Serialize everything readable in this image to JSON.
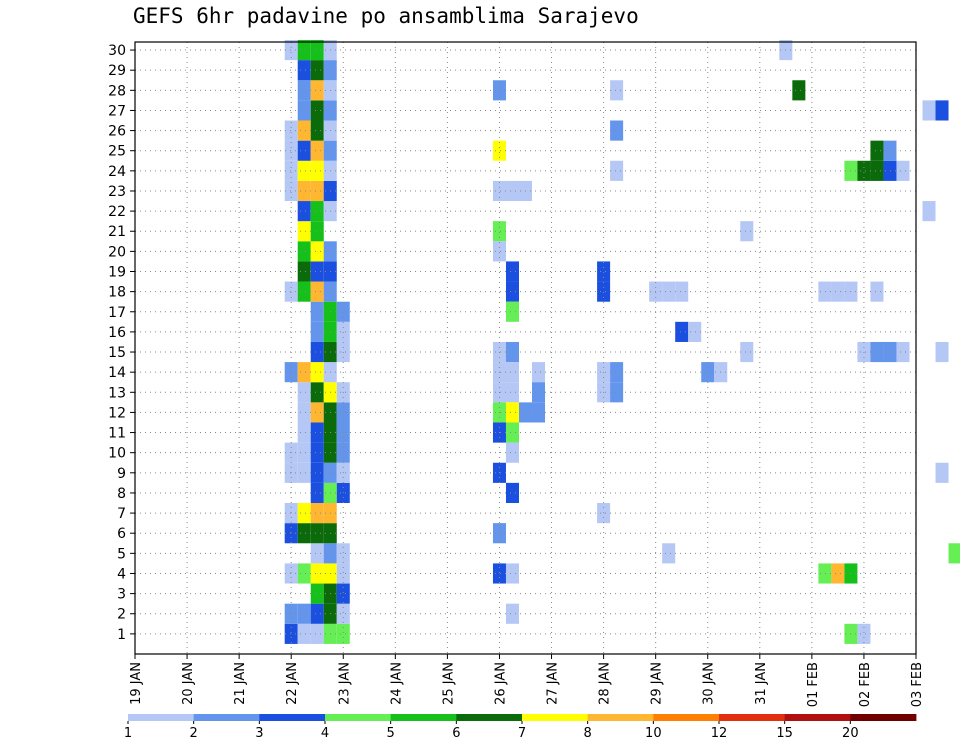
{
  "chart_data": {
    "type": "heatmap",
    "title": "GEFS 6hr padavine po ansamblima Sarajevo",
    "xlabel": "",
    "ylabel": "",
    "x_tick_labels": [
      "19 JAN",
      "20 JAN",
      "21 JAN",
      "22 JAN",
      "23 JAN",
      "24 JAN",
      "25 JAN",
      "26 JAN",
      "27 JAN",
      "28 JAN",
      "29 JAN",
      "30 JAN",
      "31 JAN",
      "01 FEB",
      "02 FEB",
      "03 FEB"
    ],
    "xlim_hours": [
      0,
      360
    ],
    "step_hours": 6,
    "y_categories": [
      "1",
      "2",
      "3",
      "4",
      "5",
      "6",
      "7",
      "8",
      "9",
      "10",
      "11",
      "12",
      "13",
      "14",
      "15",
      "16",
      "17",
      "18",
      "19",
      "20",
      "21",
      "22",
      "23",
      "24",
      "25",
      "26",
      "27",
      "28",
      "29",
      "30"
    ],
    "grid": true,
    "legend": {
      "placement": "bottom",
      "bounds": [
        1,
        2,
        3,
        4,
        5,
        6,
        7,
        8,
        10,
        12,
        15,
        20
      ],
      "colors": [
        "#b5c7f5",
        "#6495ed",
        "#1a4fe0",
        "#66ee55",
        "#16c01a",
        "#0b6b0b",
        "#ffff00",
        "#ffb732",
        "#ff7f00",
        "#e03010",
        "#b01010",
        "#700000"
      ]
    },
    "cells": [
      {
        "m": 1,
        "t": 72,
        "v": 3
      },
      {
        "m": 1,
        "t": 78,
        "v": 1
      },
      {
        "m": 1,
        "t": 84,
        "v": 1
      },
      {
        "m": 1,
        "t": 90,
        "v": 4
      },
      {
        "m": 1,
        "t": 96,
        "v": 4
      },
      {
        "m": 2,
        "t": 72,
        "v": 2
      },
      {
        "m": 2,
        "t": 78,
        "v": 2
      },
      {
        "m": 2,
        "t": 84,
        "v": 3
      },
      {
        "m": 2,
        "t": 90,
        "v": 6
      },
      {
        "m": 2,
        "t": 96,
        "v": 1
      },
      {
        "m": 3,
        "t": 84,
        "v": 5
      },
      {
        "m": 3,
        "t": 90,
        "v": 6
      },
      {
        "m": 3,
        "t": 96,
        "v": 3
      },
      {
        "m": 4,
        "t": 72,
        "v": 1
      },
      {
        "m": 4,
        "t": 78,
        "v": 4
      },
      {
        "m": 4,
        "t": 84,
        "v": 7
      },
      {
        "m": 4,
        "t": 90,
        "v": 7
      },
      {
        "m": 4,
        "t": 96,
        "v": 1
      },
      {
        "m": 5,
        "t": 84,
        "v": 1
      },
      {
        "m": 5,
        "t": 90,
        "v": 2
      },
      {
        "m": 5,
        "t": 96,
        "v": 1
      },
      {
        "m": 6,
        "t": 72,
        "v": 3
      },
      {
        "m": 6,
        "t": 78,
        "v": 6
      },
      {
        "m": 6,
        "t": 84,
        "v": 6
      },
      {
        "m": 6,
        "t": 90,
        "v": 6
      },
      {
        "m": 7,
        "t": 72,
        "v": 1
      },
      {
        "m": 7,
        "t": 78,
        "v": 7
      },
      {
        "m": 7,
        "t": 84,
        "v": 8
      },
      {
        "m": 7,
        "t": 90,
        "v": 8
      },
      {
        "m": 8,
        "t": 84,
        "v": 3
      },
      {
        "m": 8,
        "t": 90,
        "v": 4
      },
      {
        "m": 8,
        "t": 96,
        "v": 3
      },
      {
        "m": 9,
        "t": 72,
        "v": 1
      },
      {
        "m": 9,
        "t": 78,
        "v": 1
      },
      {
        "m": 9,
        "t": 84,
        "v": 3
      },
      {
        "m": 9,
        "t": 90,
        "v": 2
      },
      {
        "m": 9,
        "t": 96,
        "v": 1
      },
      {
        "m": 10,
        "t": 72,
        "v": 1
      },
      {
        "m": 10,
        "t": 78,
        "v": 1
      },
      {
        "m": 10,
        "t": 84,
        "v": 3
      },
      {
        "m": 10,
        "t": 90,
        "v": 6
      },
      {
        "m": 10,
        "t": 96,
        "v": 2
      },
      {
        "m": 11,
        "t": 78,
        "v": 1
      },
      {
        "m": 11,
        "t": 84,
        "v": 3
      },
      {
        "m": 11,
        "t": 90,
        "v": 6
      },
      {
        "m": 11,
        "t": 96,
        "v": 2
      },
      {
        "m": 12,
        "t": 78,
        "v": 1
      },
      {
        "m": 12,
        "t": 84,
        "v": 9
      },
      {
        "m": 12,
        "t": 90,
        "v": 6
      },
      {
        "m": 12,
        "t": 96,
        "v": 2
      },
      {
        "m": 13,
        "t": 78,
        "v": 1
      },
      {
        "m": 13,
        "t": 84,
        "v": 6
      },
      {
        "m": 13,
        "t": 90,
        "v": 7
      },
      {
        "m": 13,
        "t": 96,
        "v": 1
      },
      {
        "m": 14,
        "t": 72,
        "v": 2
      },
      {
        "m": 14,
        "t": 78,
        "v": 9
      },
      {
        "m": 14,
        "t": 84,
        "v": 7
      },
      {
        "m": 14,
        "t": 90,
        "v": 1
      },
      {
        "m": 15,
        "t": 84,
        "v": 3
      },
      {
        "m": 15,
        "t": 90,
        "v": 6
      },
      {
        "m": 15,
        "t": 96,
        "v": 1
      },
      {
        "m": 16,
        "t": 84,
        "v": 2
      },
      {
        "m": 16,
        "t": 90,
        "v": 5
      },
      {
        "m": 16,
        "t": 96,
        "v": 1
      },
      {
        "m": 17,
        "t": 84,
        "v": 2
      },
      {
        "m": 17,
        "t": 90,
        "v": 5
      },
      {
        "m": 17,
        "t": 96,
        "v": 2
      },
      {
        "m": 18,
        "t": 72,
        "v": 1
      },
      {
        "m": 18,
        "t": 78,
        "v": 5
      },
      {
        "m": 18,
        "t": 84,
        "v": 8
      },
      {
        "m": 18,
        "t": 90,
        "v": 2
      },
      {
        "m": 19,
        "t": 78,
        "v": 6
      },
      {
        "m": 19,
        "t": 84,
        "v": 3
      },
      {
        "m": 19,
        "t": 90,
        "v": 3
      },
      {
        "m": 20,
        "t": 78,
        "v": 5
      },
      {
        "m": 20,
        "t": 84,
        "v": 7
      },
      {
        "m": 20,
        "t": 90,
        "v": 2
      },
      {
        "m": 21,
        "t": 78,
        "v": 7
      },
      {
        "m": 21,
        "t": 84,
        "v": 5
      },
      {
        "m": 22,
        "t": 78,
        "v": 3
      },
      {
        "m": 22,
        "t": 84,
        "v": 5
      },
      {
        "m": 22,
        "t": 90,
        "v": 1
      },
      {
        "m": 23,
        "t": 72,
        "v": 1
      },
      {
        "m": 23,
        "t": 78,
        "v": 9
      },
      {
        "m": 23,
        "t": 84,
        "v": 9
      },
      {
        "m": 23,
        "t": 90,
        "v": 3
      },
      {
        "m": 24,
        "t": 72,
        "v": 1
      },
      {
        "m": 24,
        "t": 78,
        "v": 7
      },
      {
        "m": 24,
        "t": 84,
        "v": 7
      },
      {
        "m": 24,
        "t": 90,
        "v": 1
      },
      {
        "m": 25,
        "t": 72,
        "v": 1
      },
      {
        "m": 25,
        "t": 78,
        "v": 3
      },
      {
        "m": 25,
        "t": 84,
        "v": 8
      },
      {
        "m": 25,
        "t": 90,
        "v": 2
      },
      {
        "m": 26,
        "t": 72,
        "v": 1
      },
      {
        "m": 26,
        "t": 78,
        "v": 9
      },
      {
        "m": 26,
        "t": 84,
        "v": 6
      },
      {
        "m": 26,
        "t": 90,
        "v": 1
      },
      {
        "m": 27,
        "t": 78,
        "v": 2
      },
      {
        "m": 27,
        "t": 84,
        "v": 6
      },
      {
        "m": 27,
        "t": 90,
        "v": 2
      },
      {
        "m": 28,
        "t": 78,
        "v": 2
      },
      {
        "m": 28,
        "t": 84,
        "v": 8
      },
      {
        "m": 28,
        "t": 90,
        "v": 1
      },
      {
        "m": 29,
        "t": 78,
        "v": 3
      },
      {
        "m": 29,
        "t": 84,
        "v": 6
      },
      {
        "m": 29,
        "t": 90,
        "v": 2
      },
      {
        "m": 30,
        "t": 72,
        "v": 1
      },
      {
        "m": 30,
        "t": 78,
        "v": 5
      },
      {
        "m": 30,
        "t": 84,
        "v": 5
      },
      {
        "m": 30,
        "t": 90,
        "v": 1
      },
      {
        "m": 28,
        "t": 168,
        "v": 2
      },
      {
        "m": 25,
        "t": 168,
        "v": 7
      },
      {
        "m": 23,
        "t": 168,
        "v": 1
      },
      {
        "m": 23,
        "t": 174,
        "v": 1
      },
      {
        "m": 23,
        "t": 180,
        "v": 1
      },
      {
        "m": 21,
        "t": 168,
        "v": 4
      },
      {
        "m": 20,
        "t": 168,
        "v": 1
      },
      {
        "m": 18,
        "t": 174,
        "v": 3
      },
      {
        "m": 19,
        "t": 174,
        "v": 3
      },
      {
        "m": 17,
        "t": 174,
        "v": 4
      },
      {
        "m": 15,
        "t": 168,
        "v": 1
      },
      {
        "m": 15,
        "t": 174,
        "v": 2
      },
      {
        "m": 14,
        "t": 168,
        "v": 1
      },
      {
        "m": 14,
        "t": 174,
        "v": 1
      },
      {
        "m": 14,
        "t": 186,
        "v": 1
      },
      {
        "m": 13,
        "t": 168,
        "v": 1
      },
      {
        "m": 13,
        "t": 174,
        "v": 1
      },
      {
        "m": 13,
        "t": 186,
        "v": 2
      },
      {
        "m": 12,
        "t": 168,
        "v": 4
      },
      {
        "m": 12,
        "t": 174,
        "v": 7
      },
      {
        "m": 12,
        "t": 180,
        "v": 2
      },
      {
        "m": 12,
        "t": 186,
        "v": 2
      },
      {
        "m": 11,
        "t": 168,
        "v": 3
      },
      {
        "m": 11,
        "t": 174,
        "v": 4
      },
      {
        "m": 10,
        "t": 174,
        "v": 1
      },
      {
        "m": 9,
        "t": 168,
        "v": 3
      },
      {
        "m": 8,
        "t": 174,
        "v": 3
      },
      {
        "m": 6,
        "t": 168,
        "v": 2
      },
      {
        "m": 4,
        "t": 168,
        "v": 3
      },
      {
        "m": 4,
        "t": 174,
        "v": 1
      },
      {
        "m": 2,
        "t": 174,
        "v": 1
      },
      {
        "m": 28,
        "t": 222,
        "v": 1
      },
      {
        "m": 26,
        "t": 222,
        "v": 2
      },
      {
        "m": 24,
        "t": 222,
        "v": 1
      },
      {
        "m": 19,
        "t": 216,
        "v": 3
      },
      {
        "m": 18,
        "t": 216,
        "v": 3
      },
      {
        "m": 14,
        "t": 216,
        "v": 1
      },
      {
        "m": 14,
        "t": 222,
        "v": 2
      },
      {
        "m": 13,
        "t": 216,
        "v": 1
      },
      {
        "m": 13,
        "t": 222,
        "v": 2
      },
      {
        "m": 7,
        "t": 216,
        "v": 1
      },
      {
        "m": 18,
        "t": 240,
        "v": 1
      },
      {
        "m": 18,
        "t": 246,
        "v": 1
      },
      {
        "m": 18,
        "t": 252,
        "v": 1
      },
      {
        "m": 16,
        "t": 252,
        "v": 3
      },
      {
        "m": 16,
        "t": 258,
        "v": 1
      },
      {
        "m": 5,
        "t": 246,
        "v": 1
      },
      {
        "m": 14,
        "t": 264,
        "v": 2
      },
      {
        "m": 14,
        "t": 270,
        "v": 1
      },
      {
        "m": 21,
        "t": 282,
        "v": 1
      },
      {
        "m": 15,
        "t": 282,
        "v": 1
      },
      {
        "m": 30,
        "t": 300,
        "v": 1
      },
      {
        "m": 28,
        "t": 306,
        "v": 6
      },
      {
        "m": 18,
        "t": 318,
        "v": 1
      },
      {
        "m": 18,
        "t": 324,
        "v": 1
      },
      {
        "m": 18,
        "t": 330,
        "v": 1
      },
      {
        "m": 18,
        "t": 342,
        "v": 1
      },
      {
        "m": 4,
        "t": 318,
        "v": 4
      },
      {
        "m": 4,
        "t": 324,
        "v": 9
      },
      {
        "m": 4,
        "t": 330,
        "v": 5
      },
      {
        "m": 1,
        "t": 330,
        "v": 4
      },
      {
        "m": 1,
        "t": 336,
        "v": 1
      },
      {
        "m": 24,
        "t": 330,
        "v": 4
      },
      {
        "m": 24,
        "t": 336,
        "v": 6
      },
      {
        "m": 24,
        "t": 342,
        "v": 6
      },
      {
        "m": 24,
        "t": 348,
        "v": 3
      },
      {
        "m": 24,
        "t": 354,
        "v": 1
      },
      {
        "m": 25,
        "t": 342,
        "v": 6
      },
      {
        "m": 25,
        "t": 348,
        "v": 2
      },
      {
        "m": 15,
        "t": 336,
        "v": 1
      },
      {
        "m": 15,
        "t": 342,
        "v": 2
      },
      {
        "m": 15,
        "t": 348,
        "v": 2
      },
      {
        "m": 15,
        "t": 354,
        "v": 1
      },
      {
        "m": 22,
        "t": 366,
        "v": 1
      },
      {
        "m": 27,
        "t": 366,
        "v": 1
      },
      {
        "m": 27,
        "t": 372,
        "v": 3
      },
      {
        "m": 15,
        "t": 372,
        "v": 1
      },
      {
        "m": 9,
        "t": 372,
        "v": 1
      },
      {
        "m": 18,
        "t": 390,
        "v": 4
      },
      {
        "m": 18,
        "t": 396,
        "v": 2
      },
      {
        "m": 18,
        "t": 402,
        "v": 3
      },
      {
        "m": 18,
        "t": 408,
        "v": 1
      },
      {
        "m": 17,
        "t": 390,
        "v": 1
      },
      {
        "m": 17,
        "t": 396,
        "v": 3
      },
      {
        "m": 17,
        "t": 402,
        "v": 10
      },
      {
        "m": 17,
        "t": 408,
        "v": 12
      },
      {
        "m": 17,
        "t": 414,
        "v": 7
      },
      {
        "m": 17,
        "t": 420,
        "v": 2
      },
      {
        "m": 15,
        "t": 390,
        "v": 1
      },
      {
        "m": 5,
        "t": 378,
        "v": 4
      },
      {
        "m": 5,
        "t": 384,
        "v": 4
      },
      {
        "m": 5,
        "t": 402,
        "v": 1
      },
      {
        "m": 5,
        "t": 408,
        "v": 3
      },
      {
        "m": 5,
        "t": 414,
        "v": 3
      },
      {
        "m": 5,
        "t": 426,
        "v": 12
      },
      {
        "m": 5,
        "t": 432,
        "v": 12
      },
      {
        "m": 5,
        "t": 438,
        "v": 7
      },
      {
        "m": 5,
        "t": 444,
        "v": 6
      },
      {
        "m": 5,
        "t": 450,
        "v": 6
      },
      {
        "m": 10,
        "t": 402,
        "v": 2
      },
      {
        "m": 10,
        "t": 408,
        "v": 2
      },
      {
        "m": 11,
        "t": 414,
        "v": 1
      },
      {
        "m": 11,
        "t": 426,
        "v": 1
      },
      {
        "m": 7,
        "t": 408,
        "v": 1
      },
      {
        "m": 7,
        "t": 414,
        "v": 1
      },
      {
        "m": 7,
        "t": 426,
        "v": 5
      },
      {
        "m": 7,
        "t": 432,
        "v": 5
      },
      {
        "m": 6,
        "t": 414,
        "v": 1
      },
      {
        "m": 21,
        "t": 408,
        "v": 2
      },
      {
        "m": 21,
        "t": 414,
        "v": 3
      },
      {
        "m": 21,
        "t": 420,
        "v": 3
      },
      {
        "m": 20,
        "t": 420,
        "v": 9
      },
      {
        "m": 20,
        "t": 426,
        "v": 5
      },
      {
        "m": 20,
        "t": 432,
        "v": 6
      },
      {
        "m": 20,
        "t": 438,
        "v": 5
      },
      {
        "m": 20,
        "t": 444,
        "v": 2
      },
      {
        "m": 20,
        "t": 450,
        "v": 1
      },
      {
        "m": 20,
        "t": 456,
        "v": 1
      },
      {
        "m": 14,
        "t": 438,
        "v": 1
      },
      {
        "m": 14,
        "t": 444,
        "v": 1
      },
      {
        "m": 2,
        "t": 450,
        "v": 1
      }
    ]
  }
}
